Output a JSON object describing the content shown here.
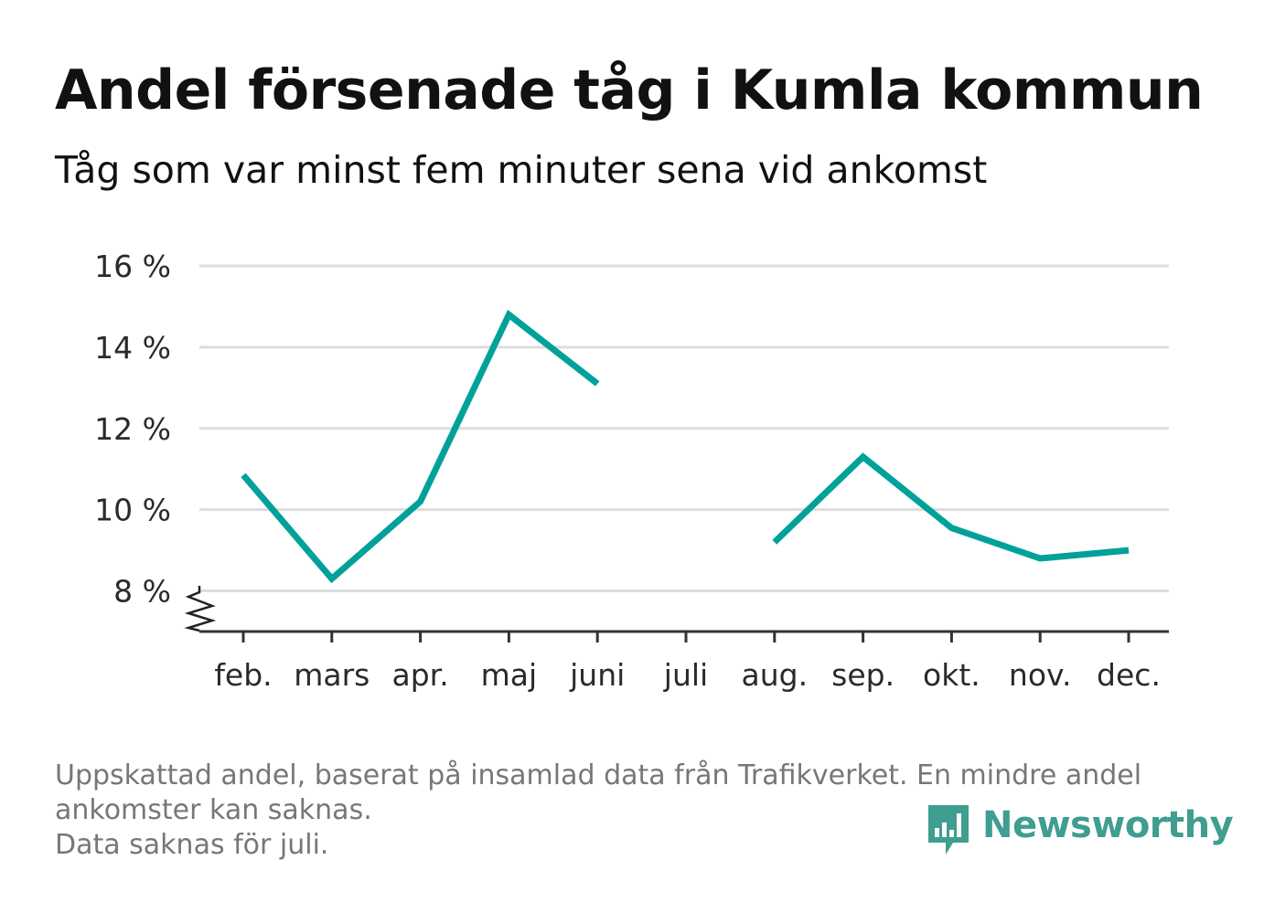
{
  "title": "Andel försenade tåg i Kumla kommun",
  "subtitle": "Tåg som var minst fem minuter sena vid ankomst",
  "footnote": {
    "line1": "Uppskattad andel, baserat på insamlad data från Trafikverket. En mindre andel",
    "line2": "ankomster kan saknas.",
    "line3": "Data saknas för juli."
  },
  "logo": {
    "text": "Newsworthy",
    "icon": "bar-chart-speech-bubble-icon",
    "color": "#3f9e8f"
  },
  "chart_data": {
    "type": "line",
    "categories": [
      "feb.",
      "mars",
      "apr.",
      "maj",
      "juni",
      "juli",
      "aug.",
      "sep.",
      "okt.",
      "nov.",
      "dec."
    ],
    "series": [
      {
        "values": [
          10.85,
          8.3,
          10.2,
          14.8,
          13.1,
          null,
          9.2,
          11.3,
          9.55,
          8.8,
          9.0
        ],
        "color": "#00a19a"
      }
    ],
    "ylim": [
      7.0,
      16.0
    ],
    "yticks": [
      8,
      10,
      12,
      14,
      16
    ],
    "ytick_labels": [
      "8 %",
      "10 %",
      "12 %",
      "14 %",
      "16 %"
    ],
    "xlabel": "",
    "ylabel": "",
    "grid": true,
    "axis_break": true,
    "legend": "none"
  }
}
